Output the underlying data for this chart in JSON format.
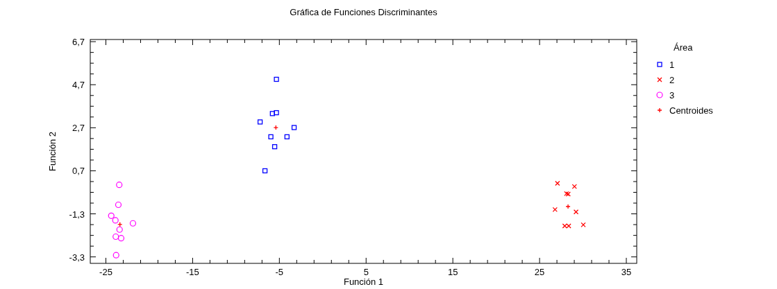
{
  "chart_data": {
    "type": "scatter",
    "title": "Gráfica de Funciones Discriminantes",
    "xlabel": "Función 1",
    "ylabel": "Función 2",
    "legend_title": "Área",
    "legend": "right",
    "grid": false,
    "xlim": [
      -26.8,
      36.2
    ],
    "ylim": [
      -3.6,
      6.8
    ],
    "xticks": [
      -25,
      {
        "value": -23,
        "label": null
      },
      {
        "value": -21,
        "label": null
      },
      {
        "value": -19,
        "label": null
      },
      {
        "value": -17,
        "label": null
      },
      -15,
      {
        "value": -13,
        "label": null
      },
      {
        "value": -11,
        "label": null
      },
      {
        "value": -9,
        "label": null
      },
      {
        "value": -7,
        "label": null
      },
      -5,
      {
        "value": -3,
        "label": null
      },
      {
        "value": -1,
        "label": null
      },
      {
        "value": 1,
        "label": null
      },
      {
        "value": 3,
        "label": null
      },
      5,
      {
        "value": 7,
        "label": null
      },
      {
        "value": 9,
        "label": null
      },
      {
        "value": 11,
        "label": null
      },
      {
        "value": 13,
        "label": null
      },
      15,
      {
        "value": 17,
        "label": null
      },
      {
        "value": 19,
        "label": null
      },
      {
        "value": 21,
        "label": null
      },
      {
        "value": 23,
        "label": null
      },
      25,
      {
        "value": 27,
        "label": null
      },
      {
        "value": 29,
        "label": null
      },
      {
        "value": 31,
        "label": null
      },
      {
        "value": 33,
        "label": null
      },
      35
    ],
    "yticks": [
      {
        "value": -3.3,
        "label": "-3,3"
      },
      {
        "value": -2.8,
        "label": null
      },
      {
        "value": -2.3,
        "label": null
      },
      {
        "value": -1.8,
        "label": null
      },
      {
        "value": -1.3,
        "label": "-1,3"
      },
      {
        "value": -0.8,
        "label": null
      },
      {
        "value": -0.3,
        "label": null
      },
      {
        "value": 0.2,
        "label": null
      },
      {
        "value": 0.7,
        "label": "0,7"
      },
      {
        "value": 1.2,
        "label": null
      },
      {
        "value": 1.7,
        "label": null
      },
      {
        "value": 2.2,
        "label": null
      },
      {
        "value": 2.7,
        "label": "2,7"
      },
      {
        "value": 3.2,
        "label": null
      },
      {
        "value": 3.7,
        "label": null
      },
      {
        "value": 4.2,
        "label": null
      },
      {
        "value": 4.7,
        "label": "4,7"
      },
      {
        "value": 5.2,
        "label": null
      },
      {
        "value": 5.7,
        "label": null
      },
      {
        "value": 6.2,
        "label": null
      },
      {
        "value": 6.7,
        "label": "6,7"
      }
    ],
    "series": [
      {
        "name": "1",
        "color": "#0000ff",
        "marker": "square",
        "x": [
          -5.34,
          -5.8,
          -5.34,
          -7.22,
          -3.3,
          -5.98,
          -4.12,
          -5.54,
          -6.66
        ],
        "values": [
          4.95,
          3.36,
          3.4,
          2.97,
          2.71,
          2.28,
          2.28,
          1.82,
          0.7
        ]
      },
      {
        "name": "2",
        "color": "#ff0000",
        "marker": "x",
        "x": [
          27.06,
          29.02,
          28.1,
          28.3,
          26.78,
          29.2,
          27.9,
          28.36,
          30.04
        ],
        "values": [
          0.12,
          -0.03,
          -0.36,
          -0.38,
          -1.1,
          -1.21,
          -1.86,
          -1.86,
          -1.81
        ]
      },
      {
        "name": "3",
        "color": "#ff00ff",
        "marker": "circle",
        "x": [
          -23.46,
          -23.56,
          -24.38,
          -23.9,
          -21.88,
          -23.42,
          -23.86,
          -23.24,
          -23.82
        ],
        "values": [
          0.05,
          -0.88,
          -1.39,
          -1.6,
          -1.74,
          -2.03,
          -2.36,
          -2.43,
          -3.22
        ]
      },
      {
        "name": "Centroides",
        "color": "#ff0000",
        "marker": "cross",
        "x": [
          -5.4,
          28.28,
          -23.38
        ],
        "values": [
          2.71,
          -0.96,
          -1.79
        ]
      }
    ]
  }
}
